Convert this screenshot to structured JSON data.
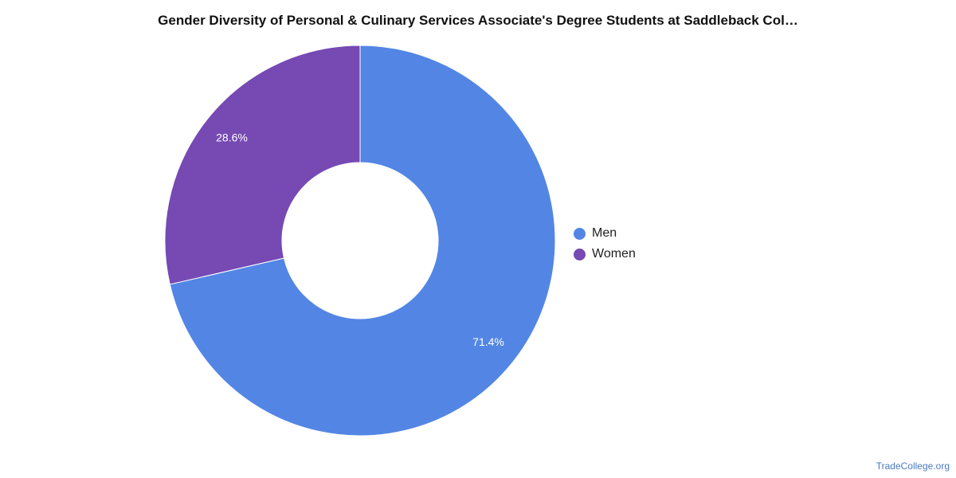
{
  "chart_data": {
    "type": "pie",
    "title": "Gender Diversity of Personal & Culinary Services Associate's Degree Students at Saddleback Col…",
    "donut": true,
    "categories": [
      "Men",
      "Women"
    ],
    "values": [
      71.4,
      28.6
    ],
    "labels": [
      "71.4%",
      "28.6%"
    ],
    "colors": [
      "#5386e4",
      "#7649b3"
    ],
    "legend": {
      "position": "right",
      "items": [
        "Men",
        "Women"
      ]
    }
  },
  "watermark": "TradeCollege.org"
}
